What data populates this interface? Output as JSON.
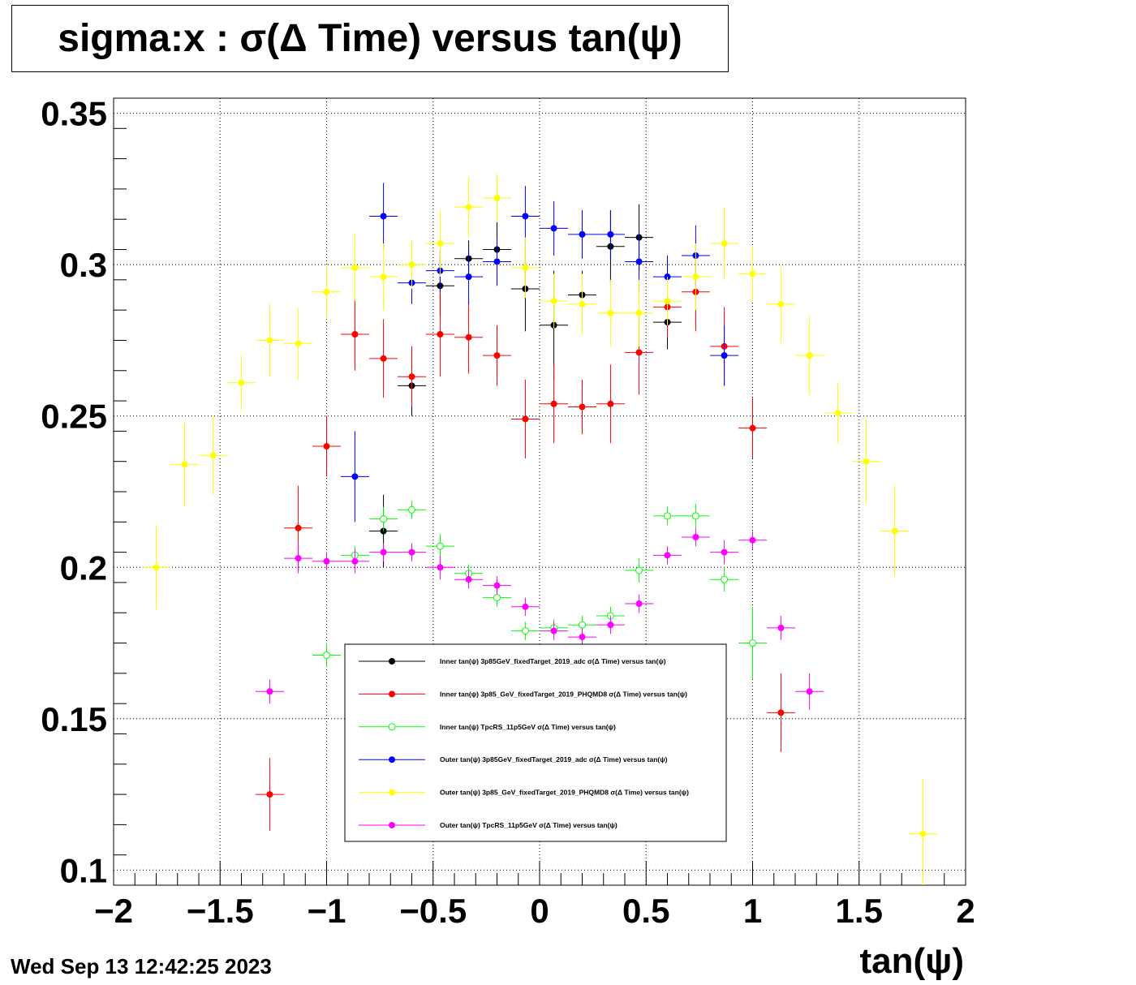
{
  "title": "sigma:x : σ(Δ Time) versus tan(ψ)",
  "datestamp": "Wed Sep 13 12:42:25 2023",
  "chart_data": {
    "type": "scatter",
    "xlabel": "tan(ψ)",
    "ylabel": "",
    "xlim": [
      -2,
      2
    ],
    "ylim": [
      0.095,
      0.355
    ],
    "xticks": [
      "−2",
      "−1.5",
      "−1",
      "−0.5",
      "0",
      "0.5",
      "1",
      "1.5",
      "2"
    ],
    "yticks": [
      "0.1",
      "0.15",
      "0.2",
      "0.25",
      "0.3",
      "0.35"
    ],
    "grid": true,
    "legend_position": "bottom-center",
    "series": [
      {
        "name": "Inner tan(ψ) 3p85GeV_fixedTarget_2019_adc σ(Δ Time) versus tan(ψ)",
        "color": "#000000",
        "marker": "filled-circle",
        "points": [
          [
            -0.733,
            0.212,
            0.012
          ],
          [
            -0.6,
            0.26,
            0.01
          ],
          [
            -0.467,
            0.293,
            0.01
          ],
          [
            -0.333,
            0.302,
            0.006
          ],
          [
            -0.2,
            0.305,
            0.01
          ],
          [
            -0.067,
            0.292,
            0.014
          ],
          [
            0.067,
            0.28,
            0.018
          ],
          [
            0.2,
            0.29,
            0.008
          ],
          [
            0.333,
            0.306,
            0.012
          ],
          [
            0.467,
            0.309,
            0.011
          ],
          [
            0.6,
            0.281,
            0.009
          ]
        ]
      },
      {
        "name": "Inner tan(ψ) 3p85_GeV_fixedTarget_2019_PHQMD8 σ(Δ Time) versus tan(ψ)",
        "color": "#ff0000",
        "marker": "filled-circle",
        "points": [
          [
            -1.267,
            0.125,
            0.012
          ],
          [
            -1.133,
            0.213,
            0.014
          ],
          [
            -1.0,
            0.24,
            0.01
          ],
          [
            -0.867,
            0.277,
            0.012
          ],
          [
            -0.733,
            0.269,
            0.013
          ],
          [
            -0.6,
            0.263,
            0.01
          ],
          [
            -0.467,
            0.277,
            0.014
          ],
          [
            -0.333,
            0.276,
            0.012
          ],
          [
            -0.2,
            0.27,
            0.01
          ],
          [
            -0.067,
            0.249,
            0.013
          ],
          [
            0.067,
            0.254,
            0.013
          ],
          [
            0.2,
            0.253,
            0.009
          ],
          [
            0.333,
            0.254,
            0.013
          ],
          [
            0.467,
            0.271,
            0.014
          ],
          [
            0.6,
            0.286,
            0.01
          ],
          [
            0.733,
            0.291,
            0.013
          ],
          [
            0.867,
            0.273,
            0.013
          ],
          [
            1.0,
            0.246,
            0.01
          ],
          [
            1.133,
            0.152,
            0.013
          ]
        ]
      },
      {
        "name": "Inner tan(ψ) TpcRS_11p5GeV σ(Δ Time) versus tan(ψ)",
        "color": "#00ff00",
        "marker": "open-circle",
        "points": [
          [
            -1.0,
            0.171,
            0.004
          ],
          [
            -0.867,
            0.204,
            0.003
          ],
          [
            -0.733,
            0.216,
            0.004
          ],
          [
            -0.6,
            0.219,
            0.003
          ],
          [
            -0.467,
            0.207,
            0.004
          ],
          [
            -0.333,
            0.198,
            0.003
          ],
          [
            -0.2,
            0.19,
            0.003
          ],
          [
            -0.067,
            0.179,
            0.003
          ],
          [
            0.067,
            0.18,
            0.003
          ],
          [
            0.2,
            0.181,
            0.003
          ],
          [
            0.333,
            0.184,
            0.003
          ],
          [
            0.467,
            0.199,
            0.004
          ],
          [
            0.6,
            0.217,
            0.003
          ],
          [
            0.733,
            0.217,
            0.004
          ],
          [
            0.867,
            0.196,
            0.004
          ],
          [
            1.0,
            0.175,
            0.012
          ]
        ]
      },
      {
        "name": "Outer tan(ψ) 3p85GeV_fixedTarget_2019_adc σ(Δ Time) versus tan(ψ)",
        "color": "#0000ff",
        "marker": "filled-circle",
        "points": [
          [
            -0.867,
            0.23,
            0.015
          ],
          [
            -0.733,
            0.316,
            0.011
          ],
          [
            -0.6,
            0.294,
            0.007
          ],
          [
            -0.467,
            0.298,
            0.007
          ],
          [
            -0.333,
            0.296,
            0.009
          ],
          [
            -0.2,
            0.301,
            0.008
          ],
          [
            -0.067,
            0.316,
            0.01
          ],
          [
            0.067,
            0.312,
            0.009
          ],
          [
            0.2,
            0.31,
            0.008
          ],
          [
            0.333,
            0.31,
            0.008
          ],
          [
            0.467,
            0.301,
            0.01
          ],
          [
            0.6,
            0.296,
            0.007
          ],
          [
            0.733,
            0.303,
            0.01
          ],
          [
            0.867,
            0.27,
            0.01
          ]
        ]
      },
      {
        "name": "Outer tan(ψ) 3p85_GeV_fixedTarget_2019_PHQMD8 σ(Δ Time) versus tan(ψ)",
        "color": "#ffff00",
        "marker": "filled-circle",
        "points": [
          [
            -1.8,
            0.2,
            0.014
          ],
          [
            -1.667,
            0.234,
            0.014
          ],
          [
            -1.533,
            0.237,
            0.013
          ],
          [
            -1.4,
            0.261,
            0.009
          ],
          [
            -1.267,
            0.275,
            0.012
          ],
          [
            -1.133,
            0.274,
            0.012
          ],
          [
            -1.0,
            0.291,
            0.009
          ],
          [
            -0.867,
            0.299,
            0.011
          ],
          [
            -0.733,
            0.296,
            0.011
          ],
          [
            -0.6,
            0.3,
            0.008
          ],
          [
            -0.467,
            0.307,
            0.011
          ],
          [
            -0.333,
            0.319,
            0.01
          ],
          [
            -0.2,
            0.322,
            0.008
          ],
          [
            -0.067,
            0.299,
            0.01
          ],
          [
            0.067,
            0.288,
            0.009
          ],
          [
            0.2,
            0.287,
            0.01
          ],
          [
            0.333,
            0.284,
            0.011
          ],
          [
            0.467,
            0.284,
            0.011
          ],
          [
            0.6,
            0.288,
            0.008
          ],
          [
            0.733,
            0.296,
            0.011
          ],
          [
            0.867,
            0.307,
            0.012
          ],
          [
            1.0,
            0.297,
            0.009
          ],
          [
            1.133,
            0.287,
            0.013
          ],
          [
            1.267,
            0.27,
            0.013
          ],
          [
            1.4,
            0.251,
            0.01
          ],
          [
            1.533,
            0.235,
            0.014
          ],
          [
            1.667,
            0.212,
            0.015
          ],
          [
            1.8,
            0.112,
            0.018
          ]
        ]
      },
      {
        "name": "Outer tan(ψ) TpcRS_11p5GeV σ(Δ Time) versus tan(ψ)",
        "color": "#ff00ff",
        "marker": "filled-circle",
        "points": [
          [
            -1.267,
            0.159,
            0.004
          ],
          [
            -1.133,
            0.203,
            0.005
          ],
          [
            -1.0,
            0.202,
            0.003
          ],
          [
            -0.867,
            0.202,
            0.004
          ],
          [
            -0.733,
            0.205,
            0.003
          ],
          [
            -0.6,
            0.205,
            0.003
          ],
          [
            -0.467,
            0.2,
            0.004
          ],
          [
            -0.333,
            0.196,
            0.003
          ],
          [
            -0.2,
            0.194,
            0.003
          ],
          [
            -0.067,
            0.187,
            0.003
          ],
          [
            0.067,
            0.179,
            0.003
          ],
          [
            0.2,
            0.177,
            0.003
          ],
          [
            0.333,
            0.181,
            0.003
          ],
          [
            0.467,
            0.188,
            0.003
          ],
          [
            0.6,
            0.204,
            0.003
          ],
          [
            0.733,
            0.21,
            0.003
          ],
          [
            0.867,
            0.205,
            0.004
          ],
          [
            1.0,
            0.209,
            0.003
          ],
          [
            1.133,
            0.18,
            0.004
          ],
          [
            1.267,
            0.159,
            0.006
          ]
        ]
      }
    ]
  }
}
